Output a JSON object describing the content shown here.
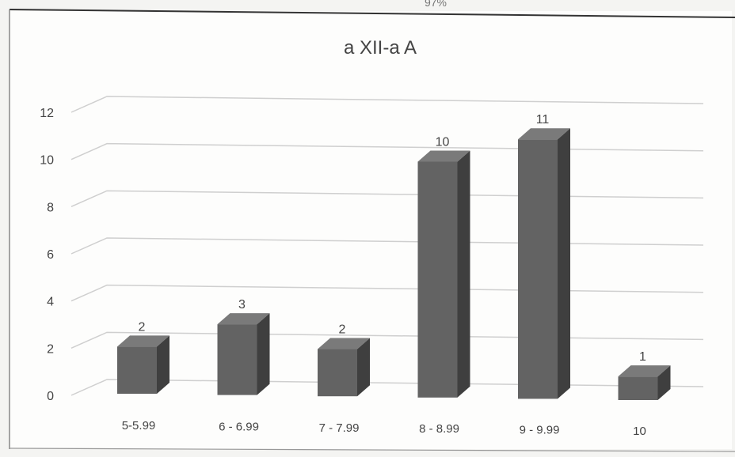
{
  "top_label": "97%",
  "chart_data": {
    "type": "bar",
    "title": "a XII-a A",
    "xlabel": "",
    "ylabel": "",
    "categories": [
      "5-5.99",
      "6 - 6.99",
      "7 - 7.99",
      "8 - 8.99",
      "9 - 9.99",
      "10"
    ],
    "values": [
      2,
      3,
      2,
      10,
      11,
      1
    ],
    "data_labels": [
      "2",
      "3",
      "2",
      "10",
      "11",
      "1"
    ],
    "y_ticks": [
      "0",
      "2",
      "4",
      "6",
      "8",
      "10",
      "12"
    ],
    "ylim": [
      0,
      12
    ],
    "grid": true,
    "legend": "none",
    "bar_color": "#5d5d5d",
    "style": "3d-column"
  }
}
